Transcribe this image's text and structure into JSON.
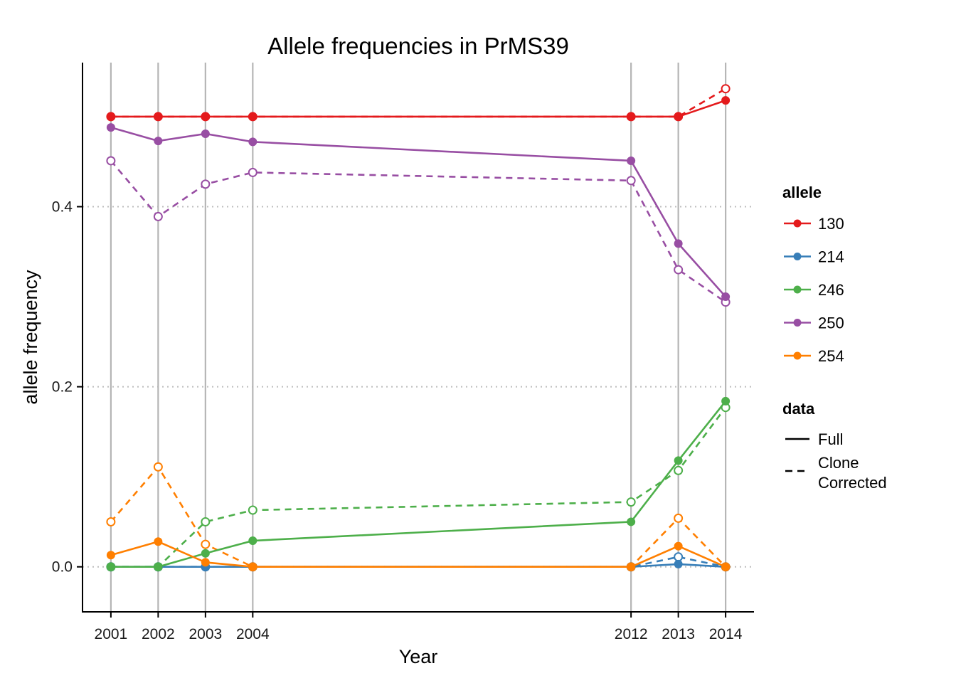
{
  "chart_data": {
    "type": "line",
    "title": "Allele frequencies in PrMS39",
    "xlabel": "Year",
    "ylabel": "allele frequency",
    "x": [
      2001,
      2002,
      2003,
      2004,
      2012,
      2013,
      2014
    ],
    "xlim": [
      2000.4,
      2014.6
    ],
    "ylim": [
      -0.05,
      0.56
    ],
    "yticks": [
      0.0,
      0.2,
      0.4
    ],
    "ytick_labels": [
      "0.0",
      "0.2",
      "0.4"
    ],
    "xtick_labels": [
      "2001",
      "2002",
      "2003",
      "2004",
      "2012",
      "2013",
      "2014"
    ],
    "grid": "vertical lines at years, horizontal dotted at y ticks",
    "legend_placement": "right",
    "series": [
      {
        "allele": "130",
        "data": "Full",
        "color": "#e41a1c",
        "dashed": false,
        "marker": "filled",
        "values": [
          0.5,
          0.5,
          0.5,
          0.5,
          0.5,
          0.5,
          0.518
        ]
      },
      {
        "allele": "130",
        "data": "Clone Corrected",
        "color": "#e41a1c",
        "dashed": true,
        "marker": "open",
        "values": [
          0.5,
          0.5,
          0.5,
          0.5,
          0.5,
          0.5,
          0.531
        ]
      },
      {
        "allele": "214",
        "data": "Full",
        "color": "#377eb8",
        "dashed": false,
        "marker": "filled",
        "values": [
          0.0,
          0.0,
          0.0,
          0.0,
          0.0,
          0.003,
          0.0
        ]
      },
      {
        "allele": "214",
        "data": "Clone Corrected",
        "color": "#377eb8",
        "dashed": true,
        "marker": "open",
        "values": [
          0.0,
          0.0,
          0.0,
          0.0,
          0.0,
          0.011,
          0.0
        ]
      },
      {
        "allele": "246",
        "data": "Full",
        "color": "#4daf4a",
        "dashed": false,
        "marker": "filled",
        "values": [
          0.0,
          0.0,
          0.015,
          0.029,
          0.05,
          0.118,
          0.184
        ]
      },
      {
        "allele": "246",
        "data": "Clone Corrected",
        "color": "#4daf4a",
        "dashed": true,
        "marker": "open",
        "values": [
          0.0,
          0.0,
          0.05,
          0.063,
          0.072,
          0.107,
          0.177
        ]
      },
      {
        "allele": "250",
        "data": "Full",
        "color": "#984ea3",
        "dashed": false,
        "marker": "filled",
        "values": [
          0.488,
          0.473,
          0.481,
          0.472,
          0.451,
          0.359,
          0.3
        ]
      },
      {
        "allele": "250",
        "data": "Clone Corrected",
        "color": "#984ea3",
        "dashed": true,
        "marker": "open",
        "values": [
          0.451,
          0.389,
          0.425,
          0.438,
          0.429,
          0.33,
          0.294
        ]
      },
      {
        "allele": "254",
        "data": "Full",
        "color": "#ff7f00",
        "dashed": false,
        "marker": "filled",
        "values": [
          0.013,
          0.028,
          0.005,
          0.0,
          0.0,
          0.023,
          0.0
        ]
      },
      {
        "allele": "254",
        "data": "Clone Corrected",
        "color": "#ff7f00",
        "dashed": true,
        "marker": "open",
        "values": [
          0.05,
          0.111,
          0.025,
          0.0,
          0.0,
          0.054,
          0.0
        ]
      }
    ],
    "legend": {
      "allele_title": "allele",
      "alleles": [
        {
          "label": "130",
          "color": "#e41a1c"
        },
        {
          "label": "214",
          "color": "#377eb8"
        },
        {
          "label": "246",
          "color": "#4daf4a"
        },
        {
          "label": "250",
          "color": "#984ea3"
        },
        {
          "label": "254",
          "color": "#ff7f00"
        }
      ],
      "data_title": "data",
      "data_items": [
        {
          "label_lines": [
            "Full"
          ],
          "dashed": false
        },
        {
          "label_lines": [
            "Clone",
            "Corrected"
          ],
          "dashed": true
        }
      ]
    }
  }
}
